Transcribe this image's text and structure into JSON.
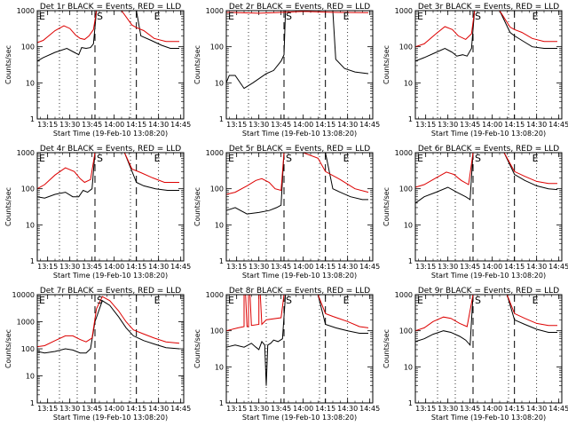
{
  "page": {
    "background": "#ffffff"
  },
  "colors": {
    "events": "#000000",
    "lld": "#dd0000",
    "axes": "#000000"
  },
  "shared": {
    "ylabel": "Counts/sec",
    "xlabel": "Start Time (19-Feb-10 13:08:20)",
    "xticks": [
      "13:15",
      "13:30",
      "13:45",
      "14:00",
      "14:15",
      "14:30",
      "14:45"
    ],
    "start_label": "S",
    "end_label": "E"
  },
  "chart_data": [
    {
      "type": "line",
      "title": "Det 1r BLACK = Events, RED = LLD",
      "xlim": [
        "13:08",
        "14:47"
      ],
      "yscale": "log",
      "ylim": [
        1,
        1000
      ],
      "yticks": [
        "1",
        "10",
        "100",
        "1000"
      ],
      "dotted_x": [
        "13:23",
        "13:35",
        "14:11",
        "14:30"
      ],
      "start_x": "13:47",
      "end_x": "14:15",
      "series": [
        {
          "name": "Events",
          "color": "#000000",
          "x": [
            "13:08",
            "13:12",
            "13:20",
            "13:28",
            "13:33",
            "13:36",
            "13:38",
            "13:41",
            "13:44",
            "13:46",
            "13:48",
            "13:50",
            "13:54",
            "13:58",
            "14:02",
            "14:05",
            "14:10",
            "14:15",
            "14:18",
            "14:25",
            "14:32",
            "14:38",
            "14:44"
          ],
          "y": [
            40,
            50,
            70,
            90,
            70,
            60,
            95,
            90,
            95,
            120,
            1000,
            1000,
            1000,
            1000,
            1000,
            1000,
            1000,
            1000,
            200,
            150,
            110,
            90,
            90
          ]
        },
        {
          "name": "LLD",
          "color": "#dd0000",
          "x": [
            "13:08",
            "13:12",
            "13:20",
            "13:26",
            "13:30",
            "13:34",
            "13:37",
            "13:40",
            "13:43",
            "13:46",
            "13:48",
            "13:50",
            "13:55",
            "14:00",
            "14:05",
            "14:12",
            "14:15",
            "14:20",
            "14:27",
            "14:35",
            "14:44"
          ],
          "y": [
            130,
            150,
            280,
            380,
            320,
            210,
            170,
            160,
            200,
            300,
            1000,
            1000,
            1000,
            1000,
            1000,
            400,
            340,
            280,
            170,
            140,
            140
          ]
        }
      ]
    },
    {
      "type": "line",
      "title": "Det 2r BLACK = Events, RED = LLD",
      "xlim": [
        "13:08",
        "14:47"
      ],
      "yscale": "log",
      "ylim": [
        1,
        1000
      ],
      "yticks": [
        "1",
        "10",
        "100",
        "1000"
      ],
      "dotted_x": [
        "13:23",
        "13:35",
        "14:11",
        "14:30"
      ],
      "start_x": "13:47",
      "end_x": "14:15",
      "series": [
        {
          "name": "Events",
          "color": "#000000",
          "x": [
            "13:08",
            "13:10",
            "13:14",
            "13:20",
            "13:26",
            "13:30",
            "13:35",
            "13:40",
            "13:45",
            "13:47",
            "13:48",
            "14:20",
            "14:22",
            "14:28",
            "14:35",
            "14:44"
          ],
          "y": [
            10,
            16,
            16,
            7,
            10,
            13,
            18,
            22,
            40,
            60,
            1000,
            1000,
            45,
            25,
            20,
            18
          ]
        },
        {
          "name": "LLD",
          "color": "#dd0000",
          "x": [
            "13:08",
            "13:30",
            "13:47",
            "14:00",
            "14:20",
            "14:44"
          ],
          "y": [
            900,
            850,
            900,
            950,
            900,
            880
          ]
        }
      ]
    },
    {
      "type": "line",
      "title": "Det 3r BLACK = Events, RED = LLD",
      "xlim": [
        "13:08",
        "14:47"
      ],
      "yscale": "log",
      "ylim": [
        1,
        1000
      ],
      "yticks": [
        "1",
        "10",
        "100",
        "1000"
      ],
      "dotted_x": [
        "13:23",
        "13:35",
        "14:11",
        "14:30"
      ],
      "start_x": "13:47",
      "end_x": "14:15",
      "series": [
        {
          "name": "Events",
          "color": "#000000",
          "x": [
            "13:08",
            "13:14",
            "13:22",
            "13:28",
            "13:33",
            "13:36",
            "13:40",
            "13:43",
            "13:46",
            "13:48",
            "14:00",
            "14:05",
            "14:12",
            "14:15",
            "14:20",
            "14:27",
            "14:35",
            "14:44"
          ],
          "y": [
            40,
            50,
            70,
            90,
            70,
            55,
            60,
            55,
            90,
            1000,
            1000,
            1000,
            250,
            200,
            150,
            100,
            90,
            90
          ]
        },
        {
          "name": "LLD",
          "color": "#dd0000",
          "x": [
            "13:08",
            "13:14",
            "13:22",
            "13:28",
            "13:33",
            "13:37",
            "13:42",
            "13:46",
            "13:48",
            "14:00",
            "14:05",
            "14:12",
            "14:15",
            "14:20",
            "14:27",
            "14:35",
            "14:44"
          ],
          "y": [
            100,
            120,
            230,
            360,
            300,
            200,
            160,
            230,
            1000,
            1000,
            1000,
            350,
            300,
            250,
            170,
            140,
            140
          ]
        }
      ]
    },
    {
      "type": "line",
      "title": "Det 4r BLACK = Events, RED = LLD",
      "xlim": [
        "13:08",
        "14:47"
      ],
      "yscale": "log",
      "ylim": [
        1,
        1000
      ],
      "yticks": [
        "1",
        "10",
        "100",
        "1000"
      ],
      "dotted_x": [
        "13:23",
        "13:35",
        "14:11",
        "14:30"
      ],
      "start_x": "13:47",
      "end_x": "14:15",
      "series": [
        {
          "name": "Events",
          "color": "#000000",
          "x": [
            "13:08",
            "13:13",
            "13:20",
            "13:27",
            "13:32",
            "13:36",
            "13:39",
            "13:42",
            "13:45",
            "13:47",
            "14:00",
            "14:07",
            "14:15",
            "14:20",
            "14:28",
            "14:36",
            "14:44"
          ],
          "y": [
            60,
            55,
            70,
            80,
            60,
            60,
            90,
            80,
            100,
            1000,
            1000,
            1000,
            150,
            120,
            100,
            90,
            90
          ]
        },
        {
          "name": "LLD",
          "color": "#dd0000",
          "x": [
            "13:08",
            "13:13",
            "13:20",
            "13:27",
            "13:33",
            "13:37",
            "13:40",
            "13:44",
            "13:47",
            "14:00",
            "14:07",
            "14:12",
            "14:18",
            "14:26",
            "14:34",
            "14:44"
          ],
          "y": [
            100,
            130,
            240,
            380,
            300,
            190,
            150,
            180,
            1000,
            1000,
            1000,
            350,
            280,
            200,
            150,
            150
          ]
        }
      ]
    },
    {
      "type": "line",
      "title": "Det 5r BLACK = Events, RED = LLD",
      "xlim": [
        "13:08",
        "14:47"
      ],
      "yscale": "log",
      "ylim": [
        1,
        1000
      ],
      "yticks": [
        "1",
        "10",
        "100",
        "1000"
      ],
      "dotted_x": [
        "13:23",
        "13:35",
        "14:11",
        "14:30"
      ],
      "start_x": "13:47",
      "end_x": "14:15",
      "series": [
        {
          "name": "Events",
          "color": "#000000",
          "x": [
            "13:08",
            "13:14",
            "13:22",
            "13:30",
            "13:37",
            "13:42",
            "13:45",
            "13:47",
            "14:00",
            "14:15",
            "14:20",
            "14:25",
            "14:32",
            "14:40",
            "14:44"
          ],
          "y": [
            25,
            30,
            20,
            22,
            25,
            30,
            35,
            1000,
            1000,
            1000,
            100,
            80,
            60,
            50,
            50
          ]
        },
        {
          "name": "LLD",
          "color": "#dd0000",
          "x": [
            "13:08",
            "13:14",
            "13:22",
            "13:28",
            "13:32",
            "13:37",
            "13:41",
            "13:45",
            "13:47",
            "14:00",
            "14:10",
            "14:15",
            "14:25",
            "14:35",
            "14:44"
          ],
          "y": [
            70,
            80,
            120,
            170,
            190,
            150,
            100,
            90,
            1000,
            1000,
            700,
            300,
            180,
            100,
            80
          ]
        }
      ]
    },
    {
      "type": "line",
      "title": "Det 6r BLACK = Events, RED = LLD",
      "xlim": [
        "13:08",
        "14:47"
      ],
      "yscale": "log",
      "ylim": [
        1,
        1000
      ],
      "yticks": [
        "1",
        "10",
        "100",
        "1000"
      ],
      "dotted_x": [
        "13:23",
        "13:35",
        "14:11",
        "14:30"
      ],
      "start_x": "13:47",
      "end_x": "14:15",
      "series": [
        {
          "name": "Events",
          "color": "#000000",
          "x": [
            "13:08",
            "13:14",
            "13:22",
            "13:30",
            "13:36",
            "13:42",
            "13:45",
            "13:47",
            "14:00",
            "14:08",
            "14:15",
            "14:22",
            "14:30",
            "14:38",
            "14:44"
          ],
          "y": [
            40,
            60,
            80,
            110,
            80,
            60,
            50,
            1000,
            1000,
            1000,
            250,
            170,
            120,
            100,
            95
          ]
        },
        {
          "name": "LLD",
          "color": "#dd0000",
          "x": [
            "13:08",
            "13:14",
            "13:22",
            "13:29",
            "13:34",
            "13:39",
            "13:44",
            "13:47",
            "14:00",
            "14:08",
            "14:15",
            "14:22",
            "14:30",
            "14:38",
            "14:44"
          ],
          "y": [
            110,
            130,
            200,
            290,
            250,
            170,
            130,
            1000,
            1000,
            1000,
            300,
            220,
            160,
            140,
            140
          ]
        }
      ]
    },
    {
      "type": "line",
      "title": "Det 7r BLACK = Events, RED = LLD",
      "xlim": [
        "13:08",
        "14:47"
      ],
      "yscale": "log",
      "ylim": [
        1,
        10000
      ],
      "yticks": [
        "1",
        "10",
        "100",
        "1000",
        "10000"
      ],
      "dotted_x": [
        "13:23",
        "13:35",
        "14:11",
        "14:30"
      ],
      "start_x": "13:47",
      "end_x": "14:15",
      "series": [
        {
          "name": "Events",
          "color": "#000000",
          "x": [
            "13:08",
            "13:13",
            "13:20",
            "13:27",
            "13:32",
            "13:37",
            "13:41",
            "13:44",
            "13:47",
            "13:52",
            "13:57",
            "14:03",
            "14:08",
            "14:13",
            "14:20",
            "14:27",
            "14:35",
            "14:44"
          ],
          "y": [
            80,
            70,
            80,
            100,
            90,
            70,
            70,
            100,
            1000,
            6000,
            4000,
            1500,
            600,
            300,
            200,
            150,
            110,
            100
          ]
        },
        {
          "name": "LLD",
          "color": "#dd0000",
          "x": [
            "13:08",
            "13:13",
            "13:20",
            "13:27",
            "13:32",
            "13:37",
            "13:41",
            "13:45",
            "13:48",
            "13:52",
            "13:57",
            "14:03",
            "14:08",
            "14:13",
            "14:20",
            "14:27",
            "14:35",
            "14:44"
          ],
          "y": [
            120,
            130,
            200,
            300,
            300,
            220,
            180,
            250,
            3000,
            8500,
            6000,
            2500,
            1000,
            500,
            350,
            250,
            180,
            160
          ]
        }
      ]
    },
    {
      "type": "line",
      "title": "Det 8r BLACK = Events, RED = LLD",
      "xlim": [
        "13:08",
        "14:47"
      ],
      "yscale": "log",
      "ylim": [
        1,
        1000
      ],
      "yticks": [
        "1",
        "10",
        "100",
        "1000"
      ],
      "dotted_x": [
        "13:23",
        "13:35",
        "14:11",
        "14:30"
      ],
      "start_x": "13:47",
      "end_x": "14:15",
      "series": [
        {
          "name": "Events",
          "color": "#000000",
          "x": [
            "13:08",
            "13:14",
            "13:20",
            "13:25",
            "13:28",
            "13:30",
            "13:32",
            "13:34",
            "13:35",
            "13:36",
            "13:38",
            "13:40",
            "13:43",
            "13:46",
            "13:48",
            "14:00",
            "14:10",
            "14:15",
            "14:22",
            "14:30",
            "14:38",
            "14:44"
          ],
          "y": [
            35,
            40,
            35,
            45,
            35,
            30,
            50,
            40,
            3,
            40,
            45,
            55,
            50,
            60,
            1000,
            1000,
            1000,
            150,
            120,
            100,
            85,
            85
          ]
        },
        {
          "name": "LLD",
          "color": "#dd0000",
          "x": [
            "13:08",
            "13:16",
            "13:20",
            "13:20",
            "13:21",
            "13:22",
            "13:23",
            "13:23",
            "13:24",
            "13:25",
            "13:30",
            "13:30",
            "13:31",
            "13:32",
            "13:35",
            "13:45",
            "13:47",
            "14:00",
            "14:10",
            "14:15",
            "14:20",
            "14:30",
            "14:38",
            "14:44"
          ],
          "y": [
            100,
            120,
            130,
            1000,
            1000,
            130,
            130,
            1000,
            1000,
            140,
            150,
            1000,
            1000,
            150,
            200,
            230,
            1000,
            1000,
            1000,
            300,
            250,
            180,
            130,
            120
          ]
        }
      ]
    },
    {
      "type": "line",
      "title": "Det 9r BLACK = Events, RED = LLD",
      "xlim": [
        "13:08",
        "14:47"
      ],
      "yscale": "log",
      "ylim": [
        1,
        1000
      ],
      "yticks": [
        "1",
        "10",
        "100",
        "1000"
      ],
      "dotted_x": [
        "13:23",
        "13:35",
        "14:11",
        "14:30"
      ],
      "start_x": "13:47",
      "end_x": "14:15",
      "series": [
        {
          "name": "Events",
          "color": "#000000",
          "x": [
            "13:08",
            "13:14",
            "13:20",
            "13:27",
            "13:32",
            "13:38",
            "13:42",
            "13:45",
            "13:47",
            "14:00",
            "14:10",
            "14:15",
            "14:22",
            "14:30",
            "14:38",
            "14:44"
          ],
          "y": [
            50,
            60,
            80,
            100,
            90,
            70,
            55,
            40,
            1000,
            1000,
            1000,
            200,
            150,
            110,
            90,
            90
          ]
        },
        {
          "name": "LLD",
          "color": "#dd0000",
          "x": [
            "13:08",
            "13:14",
            "13:20",
            "13:27",
            "13:32",
            "13:38",
            "13:43",
            "13:47",
            "14:00",
            "14:10",
            "14:15",
            "14:22",
            "14:30",
            "14:38",
            "14:44"
          ],
          "y": [
            100,
            120,
            180,
            240,
            220,
            160,
            130,
            1000,
            1000,
            1000,
            300,
            220,
            160,
            140,
            140
          ]
        }
      ]
    }
  ]
}
